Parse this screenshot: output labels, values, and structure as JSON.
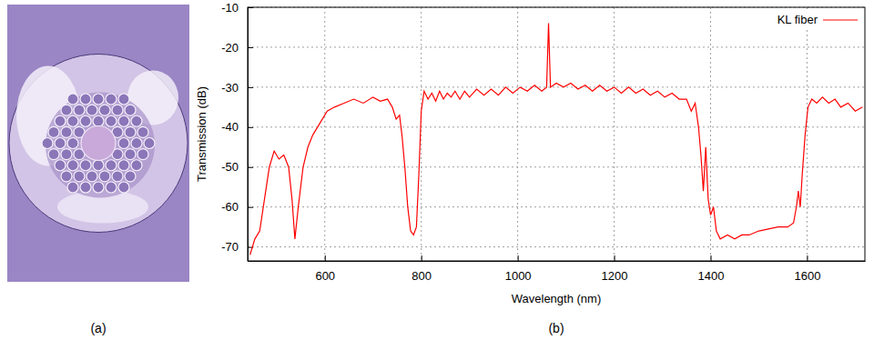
{
  "panels": [
    "(a)",
    "(b)"
  ],
  "chart_data": {
    "type": "line",
    "x_label": "Wavelength (nm)",
    "y_label": "Transmission (dB)",
    "xlim": [
      440,
      1720
    ],
    "ylim": [
      -73.5,
      -10
    ],
    "xticks": [
      600,
      800,
      1000,
      1200,
      1400,
      1600
    ],
    "yticks": [
      -70,
      -60,
      -50,
      -40,
      -30,
      -20,
      -10
    ],
    "grid": true,
    "legend": "top-right",
    "x": [
      445,
      455,
      465,
      475,
      485,
      495,
      505,
      515,
      525,
      532,
      538,
      545,
      555,
      565,
      575,
      590,
      605,
      620,
      640,
      660,
      680,
      700,
      715,
      730,
      740,
      748,
      755,
      760,
      766,
      772,
      778,
      784,
      790,
      795,
      800,
      806,
      814,
      822,
      830,
      838,
      846,
      854,
      862,
      870,
      880,
      890,
      900,
      915,
      930,
      945,
      960,
      975,
      990,
      1005,
      1020,
      1035,
      1050,
      1060,
      1064,
      1068,
      1080,
      1095,
      1110,
      1125,
      1140,
      1155,
      1170,
      1185,
      1200,
      1215,
      1230,
      1245,
      1260,
      1275,
      1290,
      1305,
      1320,
      1335,
      1350,
      1360,
      1368,
      1375,
      1380,
      1385,
      1390,
      1395,
      1400,
      1406,
      1412,
      1420,
      1435,
      1450,
      1465,
      1480,
      1500,
      1520,
      1540,
      1560,
      1572,
      1578,
      1582,
      1586,
      1590,
      1596,
      1602,
      1610,
      1620,
      1632,
      1645,
      1658,
      1670,
      1685,
      1700,
      1715
    ],
    "series": [
      {
        "name": "KL fiber",
        "color": "#ff0000",
        "line_style": "solid",
        "values": [
          -72,
          -68,
          -66,
          -58,
          -50,
          -46,
          -48,
          -47,
          -50,
          -58,
          -68,
          -60,
          -50,
          -45,
          -42,
          -39,
          -36,
          -35,
          -34,
          -33,
          -34,
          -32.5,
          -33.5,
          -33,
          -35,
          -38,
          -37,
          -42,
          -50,
          -60,
          -66,
          -67,
          -65,
          -52,
          -36,
          -31,
          -33,
          -31.5,
          -33.5,
          -31,
          -33,
          -31.5,
          -32.5,
          -31,
          -33,
          -31,
          -32.5,
          -30.5,
          -32,
          -30.5,
          -32,
          -30,
          -31.5,
          -30,
          -31,
          -29.5,
          -31,
          -30,
          -14,
          -30,
          -29,
          -30,
          -29,
          -30.5,
          -29.5,
          -31,
          -29.5,
          -31,
          -30,
          -31.5,
          -30,
          -31.5,
          -30.5,
          -32,
          -31,
          -32.5,
          -31.5,
          -33,
          -33,
          -36,
          -34,
          -40,
          -47,
          -56,
          -45,
          -58,
          -62,
          -60,
          -66,
          -68,
          -67,
          -68,
          -67,
          -67,
          -66,
          -65.5,
          -65,
          -65,
          -64,
          -60,
          -56,
          -60,
          -52,
          -42,
          -35,
          -33,
          -34,
          -32.5,
          -34,
          -33,
          -35,
          -34,
          -36,
          -35
        ]
      }
    ]
  }
}
